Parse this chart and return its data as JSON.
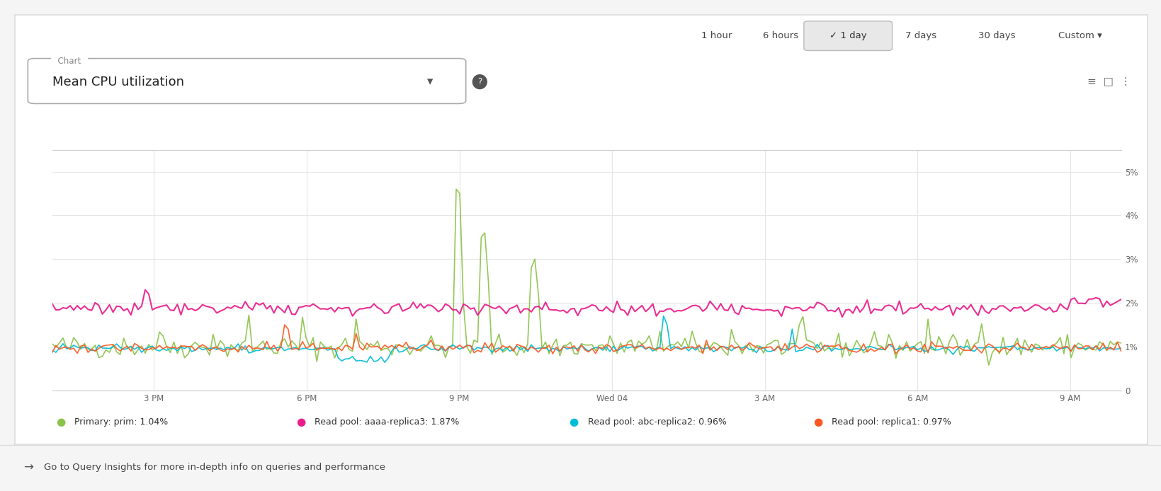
{
  "background_color": "#ffffff",
  "page_bg": "#f5f5f5",
  "title_bar_text": "Mean CPU utilization",
  "chart_label": "Chart",
  "time_options": [
    "1 hour",
    "6 hours",
    "1 day",
    "7 days",
    "30 days",
    "Custom"
  ],
  "selected_time": "1 day",
  "x_tick_labels": [
    "3 PM",
    "6 PM",
    "9 PM",
    "Wed 04",
    "3 AM",
    "6 AM",
    "9 AM"
  ],
  "y_tick_labels": [
    "0",
    "1%",
    "2%",
    "3%",
    "4%",
    "5%"
  ],
  "y_tick_values": [
    0,
    1,
    2,
    3,
    4,
    5
  ],
  "ylim": [
    0,
    5.5
  ],
  "legend_entries": [
    {
      "label": "Primary: prim: 1.04%",
      "color": "#8bc34a"
    },
    {
      "label": "Read pool: aaaa-replica3: 1.87%",
      "color": "#e91e8c"
    },
    {
      "label": "Read pool: abc-replica2: 0.96%",
      "color": "#00bcd4"
    },
    {
      "label": "Read pool: replica1: 0.97%",
      "color": "#ff5722"
    }
  ],
  "footer_text": "Go to Query Insights for more in-depth info on queries and performance",
  "series_colors": [
    "#8bc34a",
    "#e91e8c",
    "#00bcd4",
    "#ff5722"
  ],
  "n_points": 300
}
